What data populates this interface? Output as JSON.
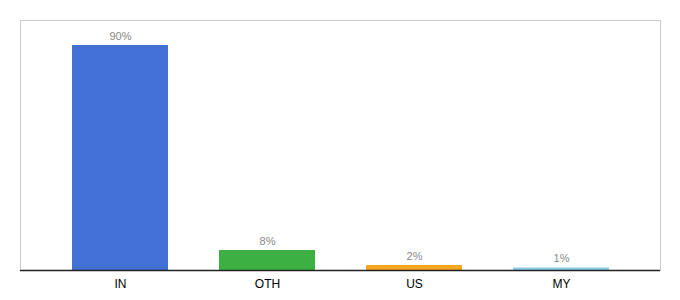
{
  "chart_data": {
    "type": "bar",
    "categories": [
      "IN",
      "OTH",
      "US",
      "MY"
    ],
    "values": [
      90,
      8,
      2,
      1
    ],
    "value_labels": [
      "90%",
      "8%",
      "2%",
      "1%"
    ],
    "colors": [
      "#4472d4",
      "#3cb043",
      "#f5a623",
      "#87ceeb"
    ],
    "ylim": [
      0,
      100
    ],
    "data_labels": true,
    "tick_labels": "x"
  }
}
